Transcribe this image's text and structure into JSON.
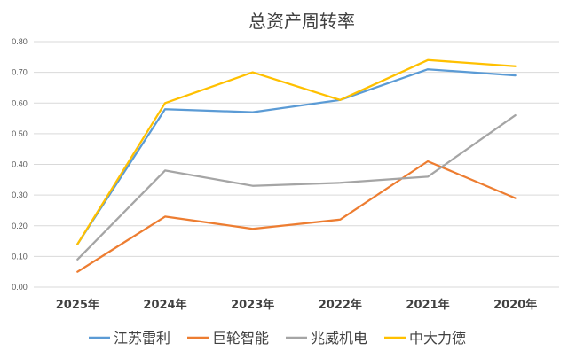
{
  "chart_data": {
    "type": "line",
    "title": "总资产周转率",
    "categories": [
      "2025年",
      "2024年",
      "2023年",
      "2022年",
      "2021年",
      "2020年"
    ],
    "ylim": [
      0,
      0.8
    ],
    "yticks": [
      "0.00",
      "0.10",
      "0.20",
      "0.30",
      "0.40",
      "0.50",
      "0.60",
      "0.70",
      "0.80"
    ],
    "grid": true,
    "legend": "bottom",
    "series": [
      {
        "name": "江苏雷利",
        "color": "#5b9bd5",
        "values": [
          0.14,
          0.58,
          0.57,
          0.61,
          0.71,
          0.69
        ]
      },
      {
        "name": "巨轮智能",
        "color": "#ed7d31",
        "values": [
          0.05,
          0.23,
          0.19,
          0.22,
          0.41,
          0.29
        ]
      },
      {
        "name": "兆威机电",
        "color": "#a5a5a5",
        "values": [
          0.09,
          0.38,
          0.33,
          0.34,
          0.36,
          0.56
        ]
      },
      {
        "name": "中大力德",
        "color": "#ffc000",
        "values": [
          0.14,
          0.6,
          0.7,
          0.61,
          0.74,
          0.72
        ]
      }
    ]
  }
}
